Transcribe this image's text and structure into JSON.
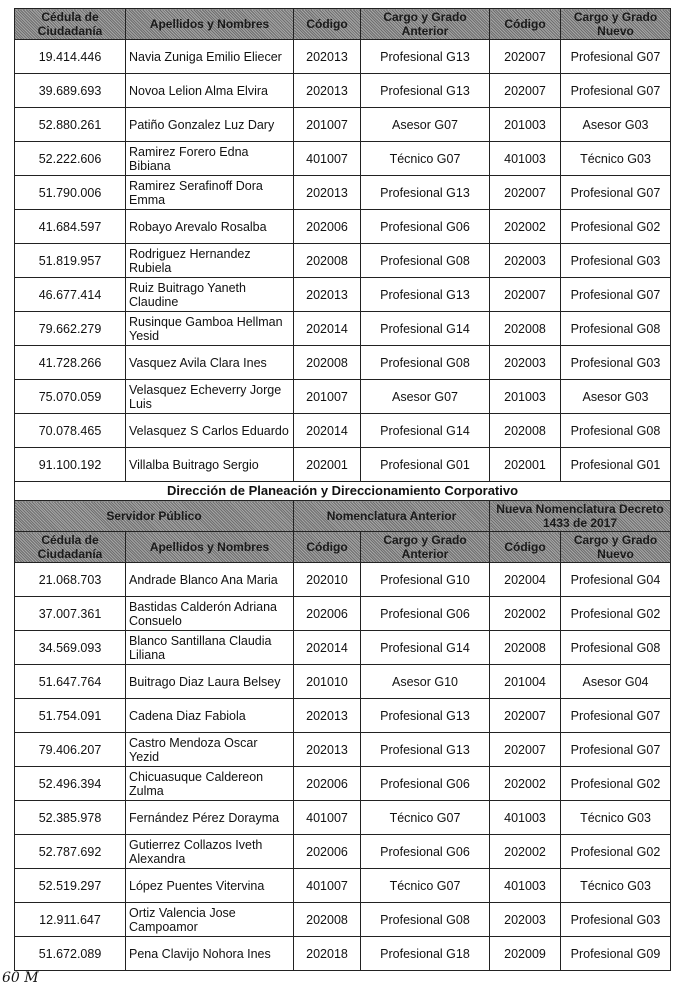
{
  "headers": {
    "cedula": "Cédula de Ciudadanía",
    "nombres": "Apellidos y Nombres",
    "codigo_ant": "Código",
    "cargo_ant": "Cargo y Grado Anterior",
    "codigo_new": "Código",
    "cargo_new": "Cargo y Grado Nuevo"
  },
  "rows1": [
    [
      "19.414.446",
      "Navia Zuniga Emilio Eliecer",
      "202013",
      "Profesional G13",
      "202007",
      "Profesional G07"
    ],
    [
      "39.689.693",
      "Novoa Lelion Alma Elvira",
      "202013",
      "Profesional G13",
      "202007",
      "Profesional G07"
    ],
    [
      "52.880.261",
      "Patiño Gonzalez Luz Dary",
      "201007",
      "Asesor G07",
      "201003",
      "Asesor G03"
    ],
    [
      "52.222.606",
      "Ramirez Forero Edna Bibiana",
      "401007",
      "Técnico G07",
      "401003",
      "Técnico G03"
    ],
    [
      "51.790.006",
      "Ramirez Serafinoff Dora Emma",
      "202013",
      "Profesional G13",
      "202007",
      "Profesional G07"
    ],
    [
      "41.684.597",
      "Robayo Arevalo Rosalba",
      "202006",
      "Profesional G06",
      "202002",
      "Profesional G02"
    ],
    [
      "51.819.957",
      "Rodriguez Hernandez Rubiela",
      "202008",
      "Profesional G08",
      "202003",
      "Profesional G03"
    ],
    [
      "46.677.414",
      "Ruiz Buitrago Yaneth Claudine",
      "202013",
      "Profesional G13",
      "202007",
      "Profesional G07"
    ],
    [
      "79.662.279",
      "Rusinque Gamboa Hellman Yesid",
      "202014",
      "Profesional G14",
      "202008",
      "Profesional G08"
    ],
    [
      "41.728.266",
      "Vasquez Avila Clara Ines",
      "202008",
      "Profesional G08",
      "202003",
      "Profesional G03"
    ],
    [
      "75.070.059",
      "Velasquez Echeverry Jorge Luis",
      "201007",
      "Asesor G07",
      "201003",
      "Asesor G03"
    ],
    [
      "70.078.465",
      "Velasquez S Carlos Eduardo",
      "202014",
      "Profesional G14",
      "202008",
      "Profesional G08"
    ],
    [
      "91.100.192",
      "Villalba Buitrago Sergio",
      "202001",
      "Profesional G01",
      "202001",
      "Profesional G01"
    ]
  ],
  "section_title": "Dirección de Planeación y Direccionamiento Corporativo",
  "group_headers": {
    "servidor": "Servidor Público",
    "anterior": "Nomenclatura Anterior",
    "nueva": "Nueva Nomenclatura Decreto 1433 de 2017"
  },
  "rows2": [
    [
      "21.068.703",
      "Andrade Blanco Ana Maria",
      "202010",
      "Profesional G10",
      "202004",
      "Profesional G04"
    ],
    [
      "37.007.361",
      "Bastidas Calderón Adriana Consuelo",
      "202006",
      "Profesional G06",
      "202002",
      "Profesional G02"
    ],
    [
      "34.569.093",
      "Blanco Santillana Claudia Liliana",
      "202014",
      "Profesional G14",
      "202008",
      "Profesional G08"
    ],
    [
      "51.647.764",
      "Buitrago Diaz Laura Belsey",
      "201010",
      "Asesor G10",
      "201004",
      "Asesor G04"
    ],
    [
      "51.754.091",
      "Cadena Diaz Fabiola",
      "202013",
      "Profesional G13",
      "202007",
      "Profesional G07"
    ],
    [
      "79.406.207",
      "Castro Mendoza Oscar Yezid",
      "202013",
      "Profesional G13",
      "202007",
      "Profesional G07"
    ],
    [
      "52.496.394",
      "Chicuasuque Caldereon Zulma",
      "202006",
      "Profesional G06",
      "202002",
      "Profesional G02"
    ],
    [
      "52.385.978",
      "Fernández Pérez Dorayma",
      "401007",
      "Técnico G07",
      "401003",
      "Técnico G03"
    ],
    [
      "52.787.692",
      "Gutierrez Collazos Iveth Alexandra",
      "202006",
      "Profesional G06",
      "202002",
      "Profesional G02"
    ],
    [
      "52.519.297",
      "López Puentes Vitervina",
      "401007",
      "Técnico G07",
      "401003",
      "Técnico G03"
    ],
    [
      "12.911.647",
      "Ortiz Valencia Jose Campoamor",
      "202008",
      "Profesional G08",
      "202003",
      "Profesional G03"
    ],
    [
      "51.672.089",
      "Pena Clavijo Nohora Ines",
      "202018",
      "Profesional G18",
      "202009",
      "Profesional G09"
    ]
  ],
  "signature": "60 M"
}
